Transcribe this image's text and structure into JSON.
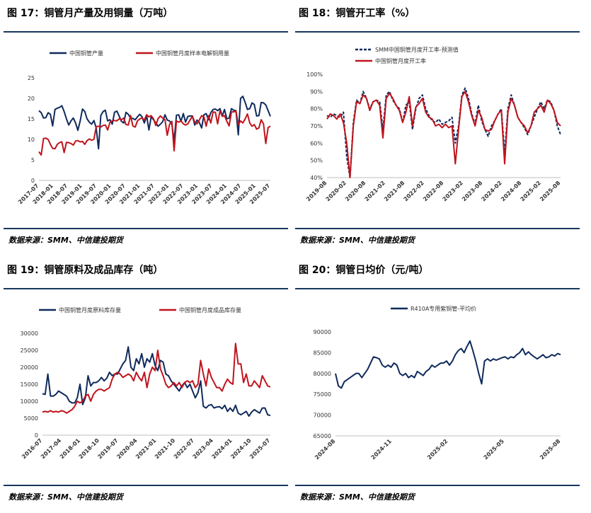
{
  "panels": [
    {
      "title": "图 17：铜管月产量及用铜量（万吨）",
      "source": "数据来源：SMM、中信建投期货"
    },
    {
      "title": "图 18：铜管开工率（%）",
      "source": "数据来源：SMM、中信建投期货"
    },
    {
      "title": "图 19：铜管原料及成品库存（吨）",
      "source": "数据来源：SMM、中信建投期货"
    },
    {
      "title": "图 20：铜管日均价（元/吨）",
      "source": "数据来源：SMM、中信建投期货"
    }
  ],
  "chart_data": [
    {
      "type": "line",
      "title": "",
      "ylim": [
        0,
        25
      ],
      "yticks": [
        "0",
        "5",
        "10",
        "15",
        "20",
        "25"
      ],
      "x_ticks": [
        "2017-07",
        "2018-01",
        "2018-07",
        "2019-01",
        "2019-07",
        "2020-01",
        "2020-07",
        "2021-01",
        "2021-07",
        "2022-01",
        "2022-07",
        "2023-01",
        "2023-07",
        "2024-01",
        "2024-07",
        "2025-01",
        "2025-07"
      ],
      "legend_position": "top",
      "series": [
        {
          "name": "中国铜管产量",
          "color": "#0f2a5c",
          "values": [
            17.0,
            16.5,
            15.2,
            15.3,
            16.5,
            16.1,
            13.3,
            17.3,
            17.6,
            17.8,
            18.2,
            16.8,
            15.0,
            13.5,
            14.5,
            15.2,
            14.0,
            12.2,
            14.5,
            17.4,
            16.8,
            15.0,
            14.2,
            13.7,
            14.6,
            12.8,
            7.7,
            15.8,
            16.8,
            17.1,
            14.5,
            14.8,
            13.7,
            16.6,
            16.9,
            15.7,
            14.4,
            14.0,
            16.6,
            16.1,
            15.2,
            15.1,
            14.8,
            15.5,
            16.1,
            15.5,
            14.0,
            15.7,
            12.3,
            15.5,
            14.8,
            14.0,
            13.2,
            13.7,
            14.3,
            16.0,
            14.7,
            14.5,
            13.7,
            9.6,
            15.9,
            16.0,
            14.4,
            16.3,
            14.2,
            15.6,
            15.7,
            15.7,
            13.5,
            14.7,
            14.1,
            12.8,
            16.0,
            16.3,
            14.8,
            16.5,
            17.3,
            17.4,
            17.0,
            17.5,
            15.7,
            17.3,
            15.0,
            15.2,
            17.5,
            17.1,
            17.0,
            11.1,
            20.0,
            20.5,
            19.0,
            17.3,
            17.5,
            18.9,
            18.5,
            15.7,
            15.8,
            19.0,
            18.9,
            18.4,
            17.0,
            15.6
          ]
        },
        {
          "name": "中国铜管月度样本电解铜用量",
          "color": "#c0141d",
          "values": [
            7.0,
            6.2,
            10.2,
            10.3,
            10.0,
            8.8,
            7.8,
            7.7,
            8.8,
            9.2,
            9.4,
            6.8,
            9.3,
            9.2,
            9.0,
            8.6,
            9.6,
            9.7,
            9.4,
            9.5,
            8.8,
            9.7,
            10.1,
            9.8,
            10.0,
            13.1,
            13.2,
            13.0,
            13.4,
            13.5,
            12.3,
            14.2,
            14.5,
            14.6,
            14.5,
            15.0,
            14.8,
            15.2,
            13.6,
            13.5,
            15.8,
            13.3,
            13.0,
            14.5,
            15.0,
            15.2,
            14.7,
            16.0,
            15.5,
            15.8,
            15.0,
            13.4,
            15.1,
            15.7,
            15.2,
            14.8,
            11.0,
            13.6,
            14.4,
            7.2,
            14.5,
            14.2,
            14.5,
            13.8,
            13.5,
            13.8,
            14.8,
            15.6,
            14.2,
            13.8,
            14.7,
            15.8,
            15.5,
            13.2,
            15.8,
            14.0,
            16.7,
            16.6,
            13.8,
            17.0,
            15.6,
            15.8,
            14.4,
            13.3,
            16.7,
            16.7,
            16.9,
            13.6,
            14.5,
            14.0,
            15.0,
            16.2,
            14.0,
            13.2,
            13.6,
            12.5,
            12.8,
            14.8,
            13.8,
            9.0,
            12.9,
            13.2
          ]
        }
      ]
    },
    {
      "type": "line",
      "title": "",
      "ylim": [
        40,
        100
      ],
      "yticks": [
        "40%",
        "50%",
        "60%",
        "70%",
        "80%",
        "90%",
        "100%"
      ],
      "x_ticks": [
        "2019-08",
        "2020-02",
        "2020-08",
        "2021-02",
        "2021-08",
        "2022-02",
        "2022-08",
        "2023-02",
        "2023-08",
        "2024-02",
        "2024-08",
        "2025-02",
        "2025-08"
      ],
      "legend_position": "top",
      "series": [
        {
          "name": "SMM中国铜管月度开工率-预测值",
          "color": "#0f2a5c",
          "dashed": true,
          "values": [
            76,
            75,
            77,
            76,
            75,
            78,
            52,
            40,
            72,
            85,
            83,
            90,
            86,
            80,
            84,
            85,
            84,
            68,
            88,
            90,
            85,
            82,
            80,
            72,
            82,
            84,
            68,
            80,
            86,
            88,
            80,
            76,
            73,
            72,
            74,
            71,
            72,
            73,
            75,
            60,
            70,
            88,
            92,
            86,
            77,
            71,
            82,
            73,
            68,
            64,
            70,
            73,
            77,
            80,
            54,
            80,
            88,
            82,
            75,
            72,
            69,
            65,
            70,
            75,
            80,
            84,
            80,
            85,
            84,
            79,
            70,
            65
          ]
        },
        {
          "name": "中国铜管月度开工率",
          "color": "#c0141d",
          "values": [
            74,
            77,
            76,
            74,
            77,
            72,
            60,
            40,
            70,
            84,
            83,
            88,
            86,
            79,
            84,
            85,
            82,
            63,
            86,
            89,
            86,
            82,
            79,
            72,
            78,
            87,
            70,
            81,
            83,
            86,
            78,
            75,
            74,
            70,
            71,
            69,
            71,
            69,
            70,
            48,
            68,
            87,
            90,
            84,
            76,
            70,
            79,
            75,
            68,
            67,
            68,
            73,
            77,
            79,
            48,
            78,
            86,
            82,
            75,
            72,
            70,
            66,
            70,
            78,
            80,
            82,
            78,
            85,
            83,
            79,
            72,
            70
          ]
        }
      ]
    },
    {
      "type": "line",
      "title": "",
      "ylim": [
        0,
        30000
      ],
      "yticks": [
        "0",
        "5000",
        "10000",
        "15000",
        "20000",
        "25000",
        "30000"
      ],
      "x_ticks": [
        "2016-07",
        "2017-04",
        "2018-01",
        "2018-10",
        "2019-07",
        "2020-04",
        "2021-01",
        "2021-10",
        "2022-07",
        "2023-04",
        "2024-01",
        "2024-10",
        "2025-07"
      ],
      "legend_position": "top",
      "series": [
        {
          "name": "中国铜管月度原料库存量",
          "color": "#0f2a5c",
          "values": [
            12200,
            12000,
            18000,
            11500,
            11500,
            12000,
            13000,
            12500,
            12000,
            11500,
            10000,
            9500,
            9500,
            11000,
            15000,
            9000,
            11000,
            17500,
            14500,
            15500,
            15500,
            16000,
            17000,
            16000,
            16800,
            18500,
            17500,
            18000,
            18000,
            19500,
            21000,
            22000,
            26000,
            20000,
            19000,
            22500,
            21000,
            24000,
            20000,
            22500,
            21500,
            24000,
            20500,
            19000,
            22000,
            21500,
            18000,
            17500,
            16000,
            15000,
            14000,
            13000,
            14500,
            15500,
            14000,
            15000,
            13000,
            11000,
            12500,
            16000,
            8500,
            8000,
            8800,
            9000,
            8000,
            8300,
            8400,
            7800,
            8800,
            7000,
            8000,
            7000,
            8800,
            6500,
            6000,
            6500,
            7000,
            5600,
            6800,
            7500,
            7000,
            6500,
            8000,
            8000,
            6000,
            5800
          ]
        },
        {
          "name": "中国铜管月度成品库存量",
          "color": "#c0141d",
          "values": [
            6800,
            7000,
            6800,
            7200,
            6800,
            7000,
            6800,
            7200,
            7000,
            6500,
            7000,
            7500,
            8500,
            10000,
            9500,
            10000,
            11500,
            12000,
            10000,
            12000,
            13000,
            13500,
            13500,
            13000,
            13500,
            14000,
            16500,
            18000,
            18500,
            18000,
            17000,
            17500,
            18000,
            17500,
            16000,
            18500,
            17000,
            16000,
            18500,
            14000,
            18000,
            20000,
            19000,
            25000,
            19500,
            17500,
            15000,
            14000,
            14500,
            15500,
            14500,
            15500,
            14000,
            15500,
            16000,
            15500,
            16000,
            14000,
            15000,
            22000,
            18000,
            14500,
            19500,
            17000,
            15500,
            14000,
            14000,
            13000,
            15000,
            16500,
            15500,
            15000,
            27000,
            21000,
            21000,
            15500,
            18000,
            14500,
            14500,
            16000,
            15000,
            14000,
            17500,
            16000,
            14500,
            14200
          ]
        }
      ]
    },
    {
      "type": "line",
      "title": "",
      "ylim": [
        65000,
        90000
      ],
      "yticks": [
        "65000",
        "70000",
        "75000",
        "80000",
        "85000",
        "90000"
      ],
      "x_ticks": [
        "2024-08",
        "2024-11",
        "2025-02",
        "2025-05",
        "2025-08"
      ],
      "legend_position": "top",
      "series": [
        {
          "name": "R410A专用紫铜管-平均价",
          "color": "#0f2a5c",
          "values": [
            80000,
            77000,
            76500,
            78000,
            78500,
            79000,
            79500,
            80000,
            80000,
            79000,
            80000,
            81000,
            82500,
            84000,
            83800,
            83500,
            82000,
            81500,
            82000,
            81500,
            82500,
            82000,
            80000,
            79500,
            80000,
            79000,
            79500,
            79000,
            80500,
            80000,
            79500,
            80500,
            81000,
            82000,
            81500,
            82000,
            82500,
            82500,
            83000,
            82000,
            83000,
            84500,
            85500,
            86000,
            85000,
            86500,
            87800,
            85500,
            83000,
            80000,
            77500,
            83000,
            83500,
            83000,
            83500,
            83200,
            83500,
            83800,
            84000,
            83500,
            84000,
            83800,
            84500,
            85000,
            86000,
            84500,
            85200,
            84500,
            84000,
            83500,
            84000,
            84500,
            83800,
            84000,
            84500,
            84200,
            84800,
            84500
          ]
        }
      ]
    }
  ]
}
